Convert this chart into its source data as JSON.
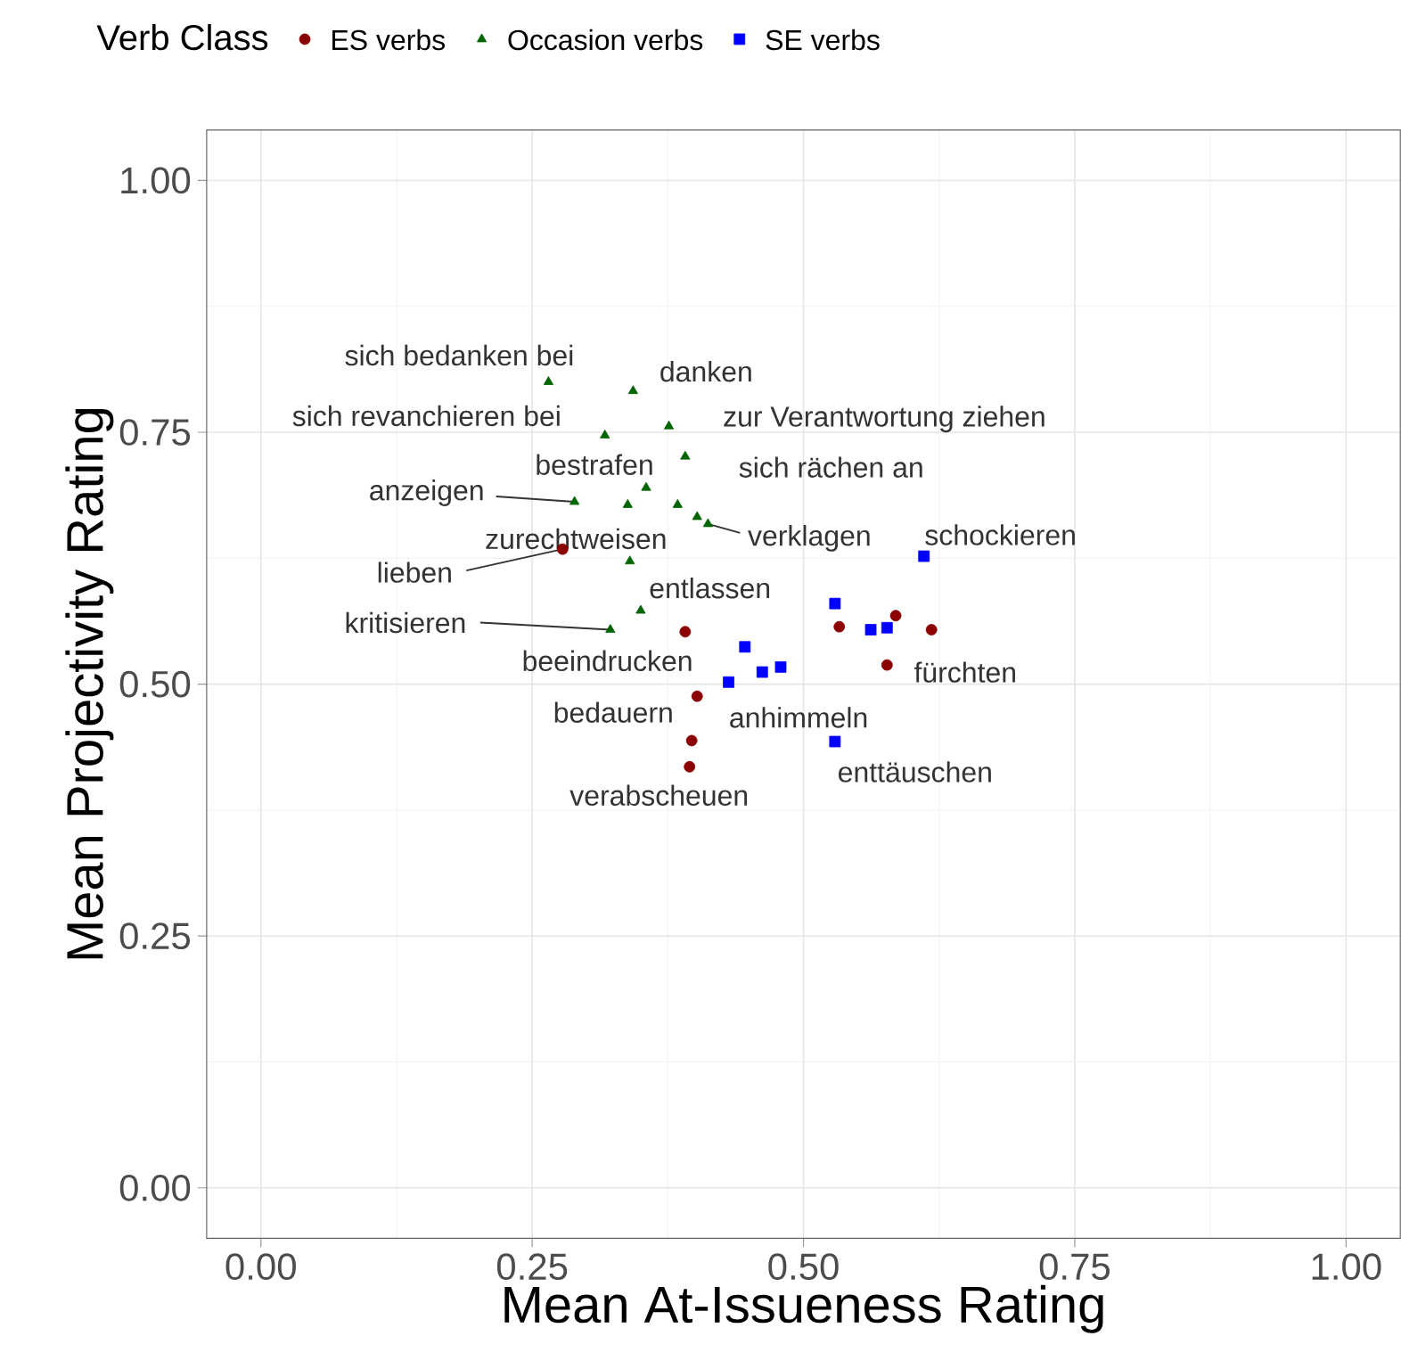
{
  "chart_data": {
    "type": "scatter",
    "xlabel": "Mean At-Issueness Rating",
    "ylabel": "Mean Projectivity Rating",
    "legend_title": "Verb Class",
    "xlim": [
      -0.05,
      1.05
    ],
    "ylim": [
      -0.05,
      1.05
    ],
    "xticks": [
      {
        "value": 0,
        "label": "0.00"
      },
      {
        "value": 0.25,
        "label": "0.25"
      },
      {
        "value": 0.5,
        "label": "0.50"
      },
      {
        "value": 0.75,
        "label": "0.75"
      },
      {
        "value": 1,
        "label": "1.00"
      }
    ],
    "yticks": [
      {
        "value": 0,
        "label": "0.00"
      },
      {
        "value": 0.25,
        "label": "0.25"
      },
      {
        "value": 0.5,
        "label": "0.50"
      },
      {
        "value": 0.75,
        "label": "0.75"
      },
      {
        "value": 1,
        "label": "1.00"
      }
    ],
    "grid": true,
    "legend": "top",
    "series": [
      {
        "name": "ES verbs",
        "color": "#8b0000",
        "marker": "circle",
        "x": [
          0.278,
          0.391,
          0.402,
          0.397,
          0.395,
          0.533,
          0.585,
          0.618,
          0.577
        ],
        "values": [
          0.634,
          0.552,
          0.488,
          0.444,
          0.418,
          0.557,
          0.568,
          0.554,
          0.519
        ]
      },
      {
        "name": "Occasion verbs",
        "color": "#006400",
        "marker": "triangle",
        "x": [
          0.265,
          0.343,
          0.317,
          0.376,
          0.391,
          0.355,
          0.289,
          0.338,
          0.384,
          0.402,
          0.412,
          0.34,
          0.35,
          0.322
        ],
        "values": [
          0.8,
          0.791,
          0.747,
          0.756,
          0.726,
          0.695,
          0.681,
          0.678,
          0.678,
          0.666,
          0.659,
          0.622,
          0.573,
          0.554
        ]
      },
      {
        "name": "SE verbs",
        "color": "#0000ff",
        "marker": "square",
        "x": [
          0.611,
          0.529,
          0.446,
          0.462,
          0.479,
          0.431,
          0.562,
          0.577,
          0.529
        ],
        "values": [
          0.627,
          0.58,
          0.537,
          0.512,
          0.517,
          0.502,
          0.554,
          0.556,
          0.443
        ]
      }
    ],
    "annotations": [
      {
        "text": "sich bedanken bei",
        "x": 0.265,
        "y": 0.8
      },
      {
        "text": "danken",
        "x": 0.343,
        "y": 0.791
      },
      {
        "text": "sich revanchieren bei",
        "x": 0.317,
        "y": 0.747
      },
      {
        "text": "zur Verantwortung ziehen",
        "x": 0.376,
        "y": 0.756
      },
      {
        "text": "bestrafen",
        "x": 0.355,
        "y": 0.695
      },
      {
        "text": "sich rächen an",
        "x": 0.391,
        "y": 0.726
      },
      {
        "text": "anzeigen",
        "x": 0.289,
        "y": 0.681
      },
      {
        "text": "zurechtweisen",
        "x": 0.338,
        "y": 0.678
      },
      {
        "text": "verklagen",
        "x": 0.412,
        "y": 0.659
      },
      {
        "text": "lieben",
        "x": 0.278,
        "y": 0.634
      },
      {
        "text": "entlassen",
        "x": 0.34,
        "y": 0.622
      },
      {
        "text": "kritisieren",
        "x": 0.322,
        "y": 0.554
      },
      {
        "text": "beeindrucken",
        "x": 0.431,
        "y": 0.502
      },
      {
        "text": "bedauern",
        "x": 0.402,
        "y": 0.488
      },
      {
        "text": "anhimmeln",
        "x": 0.397,
        "y": 0.444
      },
      {
        "text": "verabscheuen",
        "x": 0.395,
        "y": 0.418
      },
      {
        "text": "schockieren",
        "x": 0.611,
        "y": 0.627
      },
      {
        "text": "fürchten",
        "x": 0.577,
        "y": 0.519
      },
      {
        "text": "enttäuschen",
        "x": 0.529,
        "y": 0.443
      }
    ]
  }
}
